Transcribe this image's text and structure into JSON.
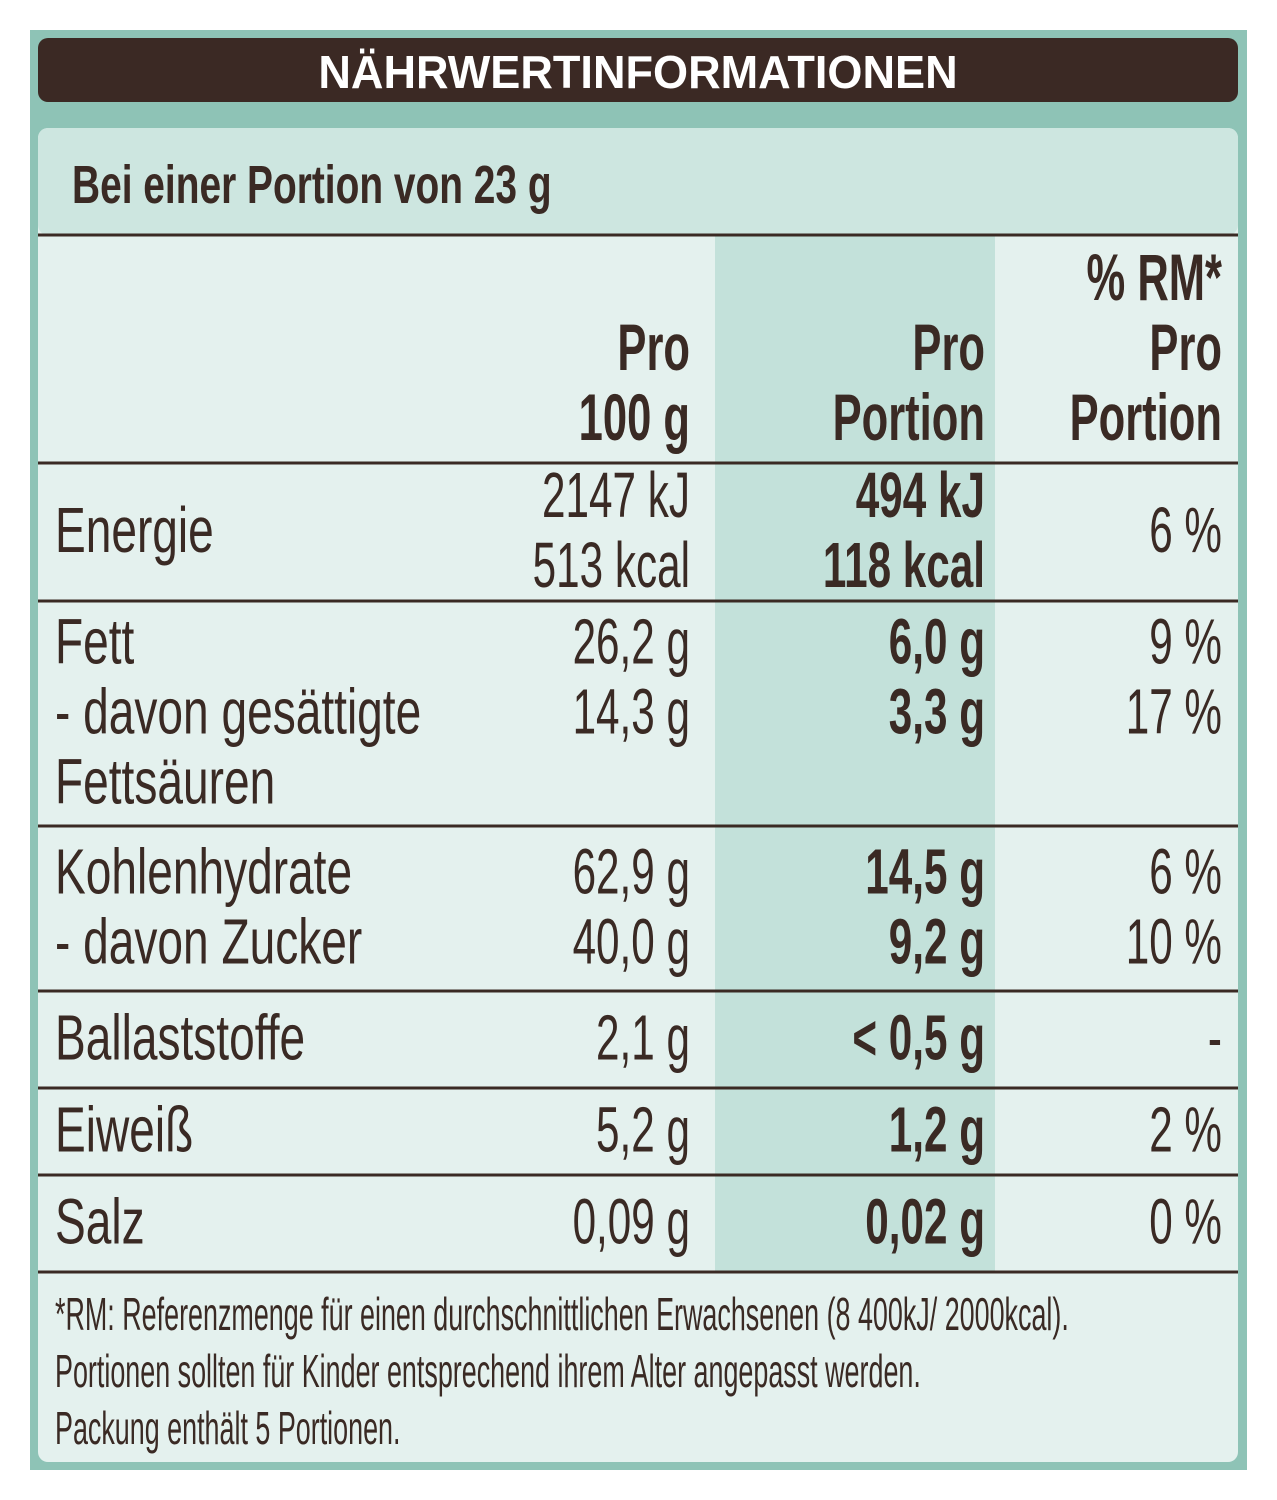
{
  "header": {
    "title": "NÄHRWERTINFORMATIONEN",
    "subtitle": "Bei einer Portion von 23 g"
  },
  "table": {
    "columns": [
      [
        "Pro",
        "100 g"
      ],
      [
        "Pro",
        "Portion"
      ],
      [
        "% RM*",
        "Pro",
        "Portion"
      ]
    ],
    "rows": [
      {
        "label": [
          "Energie"
        ],
        "per_100g": [
          "2147 kJ",
          "513 kcal"
        ],
        "per_portion": [
          "494 kJ",
          "118 kcal"
        ],
        "rm": [
          "6 %"
        ]
      },
      {
        "label": [
          "Fett",
          "- davon gesättigte",
          "Fettsäuren"
        ],
        "per_100g": [
          "26,2 g",
          "14,3 g"
        ],
        "per_portion": [
          "6,0 g",
          "3,3 g"
        ],
        "rm": [
          "9 %",
          "17 %"
        ]
      },
      {
        "label": [
          "Kohlenhydrate",
          "- davon Zucker"
        ],
        "per_100g": [
          "62,9 g",
          "40,0 g"
        ],
        "per_portion": [
          "14,5 g",
          "9,2 g"
        ],
        "rm": [
          "6 %",
          "10 %"
        ]
      },
      {
        "label": [
          "Ballaststoffe"
        ],
        "per_100g": [
          "2,1 g"
        ],
        "per_portion": [
          "< 0,5 g"
        ],
        "rm": [
          "-"
        ]
      },
      {
        "label": [
          "Eiweiß"
        ],
        "per_100g": [
          "5,2 g"
        ],
        "per_portion": [
          "1,2 g"
        ],
        "rm": [
          "2 %"
        ]
      },
      {
        "label": [
          "Salz"
        ],
        "per_100g": [
          "0,09 g"
        ],
        "per_portion": [
          "0,02 g"
        ],
        "rm": [
          "0 %"
        ]
      }
    ]
  },
  "footer": [
    "*RM: Referenzmenge für einen durchschnittlichen Erwachsenen (8 400kJ/ 2000kcal).",
    "Portionen sollten für Kinder entsprechend ihrem Alter angepasst werden.",
    "Packung enthält 5 Portionen."
  ]
}
